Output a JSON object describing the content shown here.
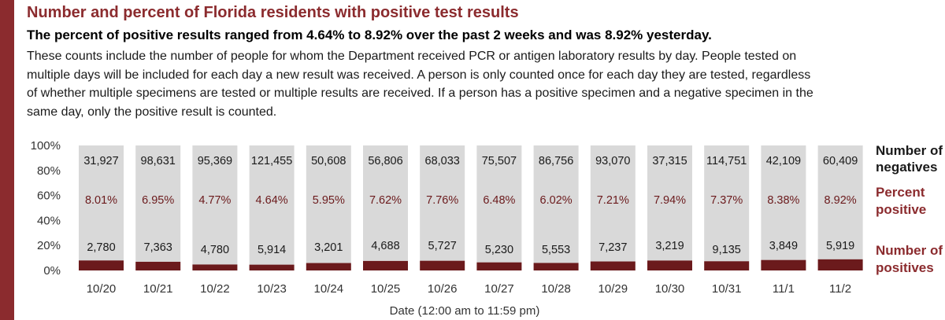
{
  "header": {
    "title": "Number and percent of Florida residents with positive test results",
    "subtitle": "The percent of positive results ranged from 4.64% to 8.92% over the past 2 weeks and was 8.92% yesterday.",
    "description": "These counts include the number of people for whom the Department received PCR or antigen laboratory results by day. People tested on multiple days will be included for each day a new result was received. A person is only counted once for each day they are tested, regardless of whether multiple specimens are tested or multiple results are received. If a person has a positive specimen and a negative specimen in the same day, only the positive result is counted."
  },
  "legend": {
    "negatives": [
      "Number of",
      "negatives"
    ],
    "percent": [
      "Percent",
      "positive"
    ],
    "positives": [
      "Number of",
      "positives"
    ]
  },
  "colors": {
    "accent": "#8b2b2e",
    "positives_bar": "#6b1a1c",
    "negatives_bar": "#d9d9d9"
  },
  "chart_data": {
    "type": "bar",
    "stacked": "100%",
    "categories": [
      "10/20",
      "10/21",
      "10/22",
      "10/23",
      "10/24",
      "10/25",
      "10/26",
      "10/27",
      "10/28",
      "10/29",
      "10/30",
      "10/31",
      "11/1",
      "11/2"
    ],
    "negatives": [
      "31,927",
      "98,631",
      "95,369",
      "121,455",
      "50,608",
      "56,806",
      "68,033",
      "75,507",
      "86,756",
      "93,070",
      "37,315",
      "114,751",
      "42,109",
      "60,409"
    ],
    "percent_positive": [
      "8.01%",
      "6.95%",
      "4.77%",
      "4.64%",
      "5.95%",
      "7.62%",
      "7.76%",
      "6.48%",
      "6.02%",
      "7.21%",
      "7.94%",
      "7.37%",
      "8.38%",
      "8.92%"
    ],
    "positives": [
      "2,780",
      "7,363",
      "4,780",
      "5,914",
      "3,201",
      "4,688",
      "5,727",
      "5,230",
      "5,553",
      "7,237",
      "3,219",
      "9,135",
      "3,849",
      "5,919"
    ],
    "percent_values": [
      8.01,
      6.95,
      4.77,
      4.64,
      5.95,
      7.62,
      7.76,
      6.48,
      6.02,
      7.21,
      7.94,
      7.37,
      8.38,
      8.92
    ],
    "y_ticks": [
      "100%",
      "80%",
      "60%",
      "40%",
      "20%",
      "0%"
    ],
    "ylim": [
      0,
      100
    ],
    "xlabel": "Date (12:00 am to 11:59 pm)"
  }
}
